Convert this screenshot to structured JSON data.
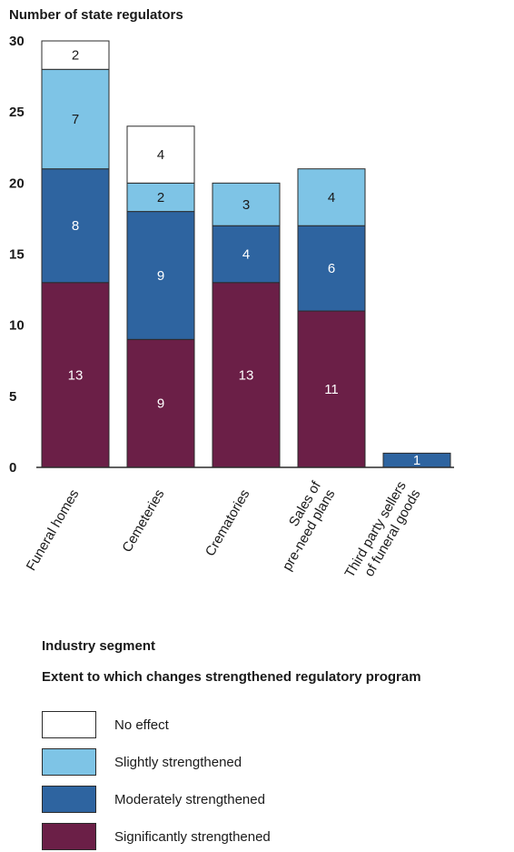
{
  "chart_data": {
    "type": "bar",
    "stacked": true,
    "ylabel": "Number of state regulators",
    "xlabel": "Industry segment",
    "legend_title": "Extent to which changes strengthened regulatory program",
    "ylim": [
      0,
      30
    ],
    "yticks": [
      "0",
      "5",
      "10",
      "15",
      "20",
      "25",
      "30"
    ],
    "categories": [
      "Funeral homes",
      "Cemeteries",
      "Crematories",
      "Sales of pre-need plans",
      "Third party sellers of funeral goods"
    ],
    "category_lines": [
      [
        "Funeral homes"
      ],
      [
        "Cemeteries"
      ],
      [
        "Crematories"
      ],
      [
        "Sales of",
        "pre-need plans"
      ],
      [
        "Third party sellers",
        "of funeral goods"
      ]
    ],
    "series": [
      {
        "name": "Significantly strengthened",
        "color": "#6b1f47",
        "label_color": "#ffffff",
        "values": [
          13,
          9,
          13,
          11,
          0
        ]
      },
      {
        "name": "Moderately strengthened",
        "color": "#2e64a0",
        "label_color": "#ffffff",
        "values": [
          8,
          9,
          4,
          6,
          1
        ]
      },
      {
        "name": "Slightly strengthened",
        "color": "#7ec4e6",
        "label_color": "#1a1a1a",
        "values": [
          7,
          2,
          3,
          4,
          0
        ]
      },
      {
        "name": "No effect",
        "color": "#ffffff",
        "label_color": "#1a1a1a",
        "values": [
          2,
          4,
          0,
          0,
          0
        ]
      }
    ],
    "legend_order": [
      "No effect",
      "Slightly strengthened",
      "Moderately strengthened",
      "Significantly strengthened"
    ]
  }
}
